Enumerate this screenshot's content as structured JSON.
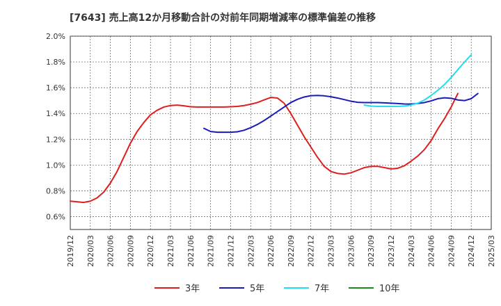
{
  "chart_data": {
    "type": "line",
    "title": "[7643]  売上高12か月移動合計の対前年同期増減率の標準偏差の推移",
    "xlabel": "",
    "ylabel": "",
    "ylim": [
      0.5,
      2.0
    ],
    "y_ticks": [
      "0.6%",
      "0.8%",
      "1.0%",
      "1.2%",
      "1.4%",
      "1.6%",
      "1.8%",
      "2.0%"
    ],
    "y_tick_values": [
      0.6,
      0.8,
      1.0,
      1.2,
      1.4,
      1.6,
      1.8,
      2.0
    ],
    "x_ticks": [
      "2019/12",
      "2020/03",
      "2020/06",
      "2020/09",
      "2020/12",
      "2021/03",
      "2021/06",
      "2021/09",
      "2021/12",
      "2022/03",
      "2022/06",
      "2022/09",
      "2022/12",
      "2023/03",
      "2023/06",
      "2023/09",
      "2023/12",
      "2024/03",
      "2024/06",
      "2024/09",
      "2024/12",
      "2025/03"
    ],
    "grid": true,
    "legend_position": "bottom",
    "series": [
      {
        "name": "3年",
        "color": "#dd1e1e",
        "start": "2019/12",
        "values": [
          0.72,
          0.715,
          0.71,
          0.72,
          0.745,
          0.79,
          0.86,
          0.95,
          1.06,
          1.17,
          1.26,
          1.33,
          1.39,
          1.425,
          1.45,
          1.462,
          1.465,
          1.46,
          1.452,
          1.45,
          1.45,
          1.45,
          1.45,
          1.45,
          1.452,
          1.455,
          1.462,
          1.472,
          1.485,
          1.505,
          1.525,
          1.52,
          1.48,
          1.4,
          1.31,
          1.22,
          1.14,
          1.06,
          0.99,
          0.95,
          0.935,
          0.93,
          0.94,
          0.96,
          0.98,
          0.99,
          0.99,
          0.98,
          0.97,
          0.975,
          0.995,
          1.03,
          1.07,
          1.12,
          1.19,
          1.28,
          1.36,
          1.45,
          1.555
        ]
      },
      {
        "name": "5年",
        "color": "#1a1ab8",
        "start": "2021/08",
        "values": [
          1.285,
          1.26,
          1.255,
          1.255,
          1.255,
          1.258,
          1.27,
          1.29,
          1.315,
          1.345,
          1.38,
          1.415,
          1.45,
          1.485,
          1.51,
          1.528,
          1.538,
          1.54,
          1.537,
          1.53,
          1.52,
          1.508,
          1.495,
          1.487,
          1.485,
          1.485,
          1.485,
          1.483,
          1.48,
          1.477,
          1.474,
          1.473,
          1.478,
          1.485,
          1.498,
          1.515,
          1.522,
          1.518,
          1.505,
          1.5,
          1.515,
          1.555
        ]
      },
      {
        "name": "7年",
        "color": "#22ddee",
        "start": "2023/08",
        "values": [
          1.465,
          1.458,
          1.455,
          1.455,
          1.455,
          1.455,
          1.458,
          1.466,
          1.48,
          1.505,
          1.54,
          1.58,
          1.625,
          1.68,
          1.74,
          1.8,
          1.855
        ]
      },
      {
        "name": "10年",
        "color": "#1a8a1a",
        "start": "2024/12",
        "values": []
      }
    ]
  }
}
